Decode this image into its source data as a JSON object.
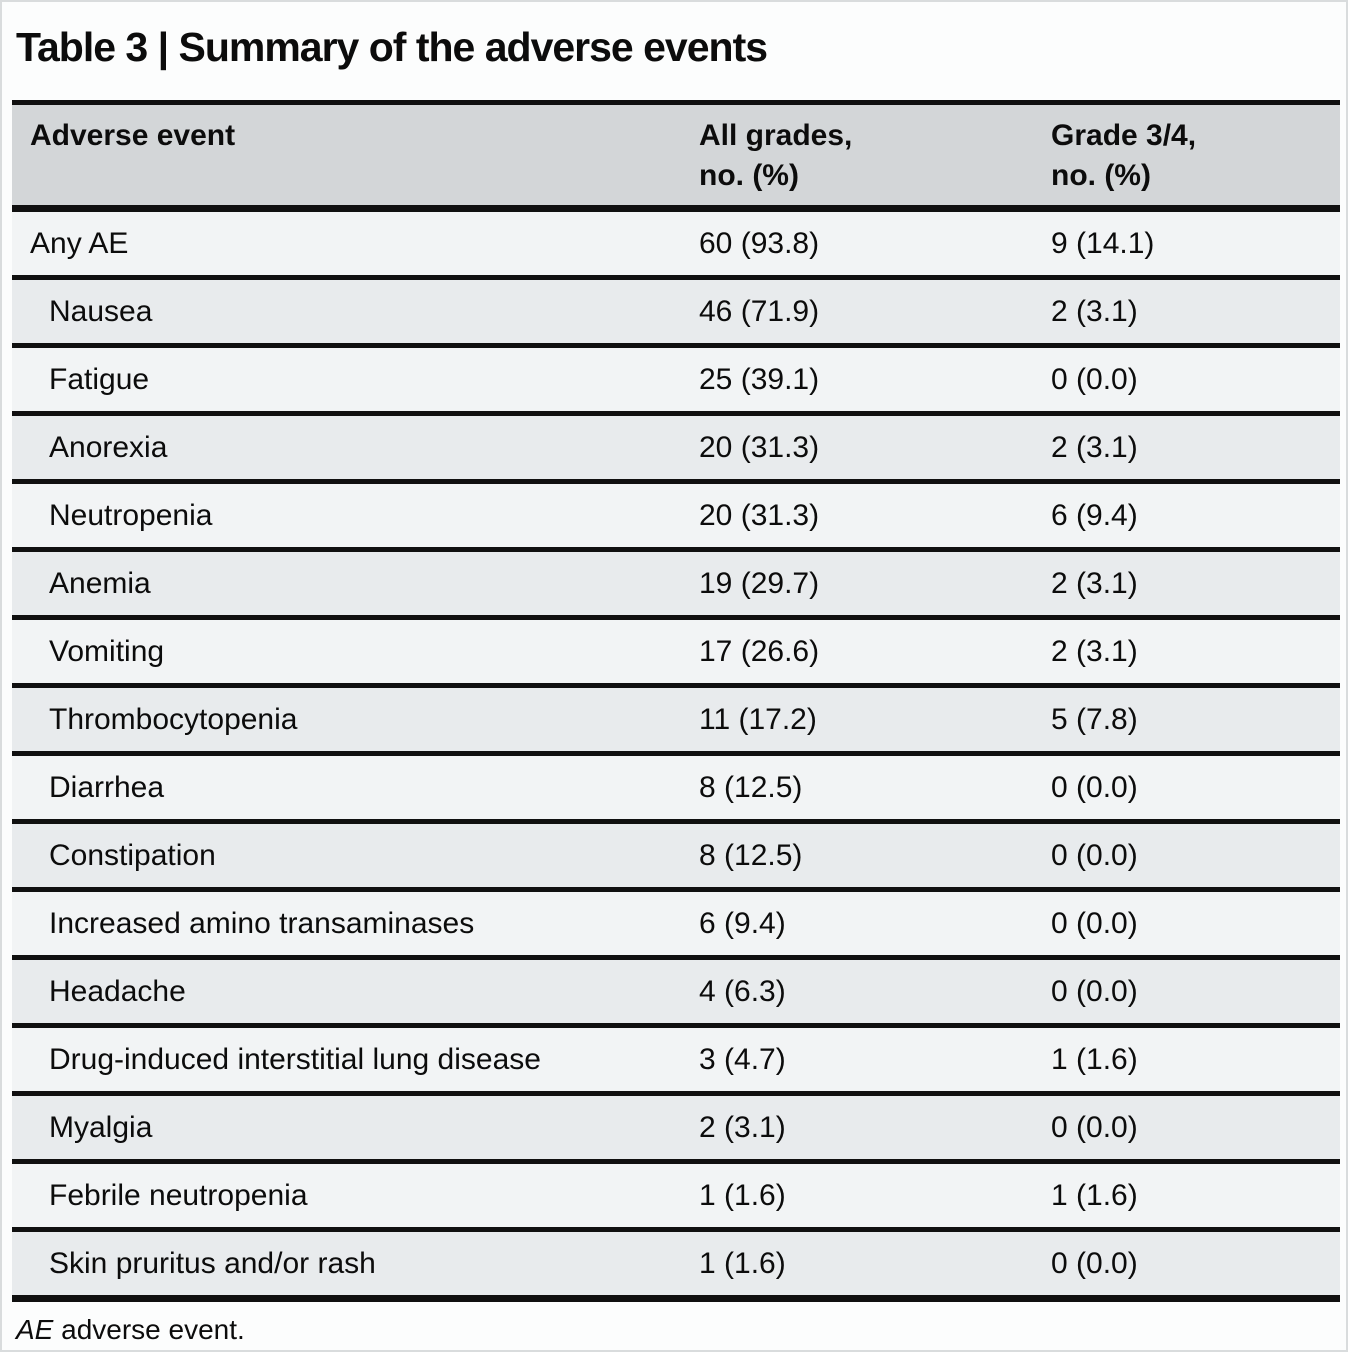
{
  "title": "Table 3 | Summary of the adverse events",
  "table": {
    "columns": [
      {
        "line1": "Adverse event",
        "line2": ""
      },
      {
        "line1": "All grades,",
        "line2": "no. (%)"
      },
      {
        "line1": "Grade 3/4,",
        "line2": "no. (%)"
      }
    ],
    "rows": [
      {
        "label": "Any AE",
        "indent": false,
        "all_grades": "60 (93.8)",
        "grade_3_4": "9 (14.1)"
      },
      {
        "label": "Nausea",
        "indent": true,
        "all_grades": "46 (71.9)",
        "grade_3_4": "2 (3.1)"
      },
      {
        "label": "Fatigue",
        "indent": true,
        "all_grades": "25 (39.1)",
        "grade_3_4": "0 (0.0)"
      },
      {
        "label": "Anorexia",
        "indent": true,
        "all_grades": "20 (31.3)",
        "grade_3_4": "2 (3.1)"
      },
      {
        "label": "Neutropenia",
        "indent": true,
        "all_grades": "20 (31.3)",
        "grade_3_4": "6 (9.4)"
      },
      {
        "label": "Anemia",
        "indent": true,
        "all_grades": "19 (29.7)",
        "grade_3_4": "2 (3.1)"
      },
      {
        "label": "Vomiting",
        "indent": true,
        "all_grades": "17 (26.6)",
        "grade_3_4": "2 (3.1)"
      },
      {
        "label": "Thrombocytopenia",
        "indent": true,
        "all_grades": "11 (17.2)",
        "grade_3_4": "5 (7.8)"
      },
      {
        "label": "Diarrhea",
        "indent": true,
        "all_grades": "8 (12.5)",
        "grade_3_4": "0 (0.0)"
      },
      {
        "label": "Constipation",
        "indent": true,
        "all_grades": "8 (12.5)",
        "grade_3_4": "0 (0.0)"
      },
      {
        "label": "Increased amino transaminases",
        "indent": true,
        "all_grades": "6 (9.4)",
        "grade_3_4": "0 (0.0)"
      },
      {
        "label": "Headache",
        "indent": true,
        "all_grades": "4 (6.3)",
        "grade_3_4": "0 (0.0)"
      },
      {
        "label": "Drug-induced interstitial lung disease",
        "indent": true,
        "all_grades": "3 (4.7)",
        "grade_3_4": "1 (1.6)"
      },
      {
        "label": "Myalgia",
        "indent": true,
        "all_grades": "2 (3.1)",
        "grade_3_4": "0 (0.0)"
      },
      {
        "label": "Febrile neutropenia",
        "indent": true,
        "all_grades": "1 (1.6)",
        "grade_3_4": "1 (1.6)"
      },
      {
        "label": "Skin pruritus and/or rash",
        "indent": true,
        "all_grades": "1 (1.6)",
        "grade_3_4": "0 (0.0)"
      }
    ]
  },
  "footnote": {
    "abbr": "AE",
    "text": " adverse event."
  },
  "colors": {
    "header_bg": "#d3d6d8",
    "row_light": "#f2f4f5",
    "row_dark": "#e8ebed",
    "table_line": "#101010",
    "text": "#0c0c0c",
    "page_bg": "#fcfdfd"
  }
}
